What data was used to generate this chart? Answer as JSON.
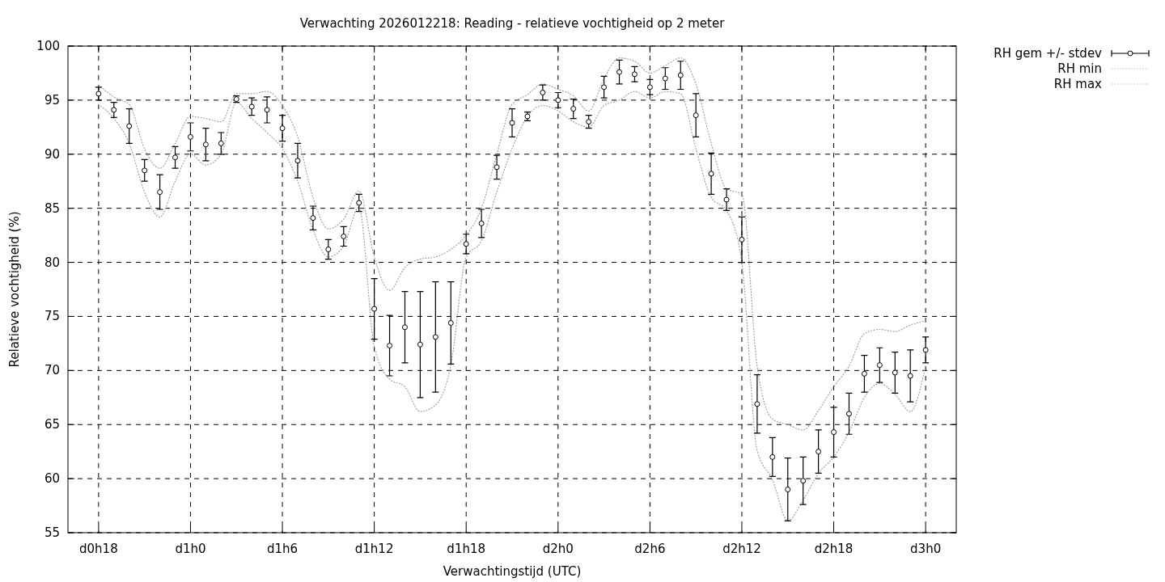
{
  "chart_data": {
    "type": "scatter",
    "title": "Verwachting 2026012218: Reading - relatieve vochtigheid op 2 meter",
    "xlabel": "Verwachtingstijd (UTC)",
    "ylabel": "Relatieve vochtigheid (%)",
    "categories": [
      "d0h18",
      null,
      null,
      null,
      null,
      null,
      "d1h0",
      null,
      null,
      null,
      null,
      null,
      "d1h6",
      null,
      null,
      null,
      null,
      null,
      "d1h12",
      null,
      null,
      null,
      null,
      null,
      "d1h18",
      null,
      null,
      null,
      null,
      null,
      "d2h0",
      null,
      null,
      null,
      null,
      null,
      "d2h6",
      null,
      null,
      null,
      null,
      null,
      "d2h12",
      null,
      null,
      null,
      null,
      null,
      "d2h18",
      null,
      null,
      null,
      null,
      null,
      "d3h0"
    ],
    "ylim": [
      55,
      100
    ],
    "yticks": [
      55,
      60,
      65,
      70,
      75,
      80,
      85,
      90,
      95,
      100
    ],
    "grid": true,
    "legend": "top right",
    "series": [
      {
        "name": "RH gem +/- stdev",
        "marker": "circle",
        "color": "#000000",
        "values": [
          95.6,
          94.1,
          92.6,
          88.5,
          86.5,
          89.7,
          91.6,
          90.9,
          91.0,
          95.1,
          94.4,
          94.1,
          92.4,
          89.4,
          84.1,
          81.2,
          82.4,
          85.5,
          75.7,
          72.3,
          74.0,
          72.4,
          73.1,
          74.4,
          81.7,
          83.6,
          88.8,
          92.9,
          93.5,
          95.7,
          95.0,
          94.2,
          93.0,
          96.2,
          97.6,
          97.4,
          96.2,
          97.0,
          97.3,
          93.6,
          88.2,
          85.8,
          82.1,
          66.9,
          62.0,
          59.0,
          59.8,
          62.5,
          64.3,
          66.0,
          69.7,
          70.5,
          69.8,
          69.5,
          71.9
        ],
        "errors": [
          0.6,
          0.7,
          1.6,
          1.0,
          1.6,
          1.0,
          1.3,
          1.5,
          1.0,
          0.3,
          0.8,
          1.2,
          1.2,
          1.6,
          1.1,
          0.9,
          0.9,
          0.8,
          2.8,
          2.8,
          3.3,
          4.9,
          5.1,
          3.8,
          0.9,
          1.3,
          1.1,
          1.3,
          0.4,
          0.7,
          0.7,
          0.9,
          0.6,
          1.0,
          1.1,
          0.7,
          0.7,
          1.0,
          1.3,
          2.0,
          1.9,
          1.0,
          2.1,
          2.7,
          1.8,
          2.9,
          2.2,
          2.0,
          2.3,
          1.9,
          1.7,
          1.6,
          1.9,
          2.4,
          1.2
        ]
      },
      {
        "name": "RH min",
        "type": "line",
        "line_style": "dotted",
        "color": "#a0a0a0",
        "values": [
          94.6,
          93.3,
          91.0,
          86.5,
          84.2,
          87.5,
          90.0,
          89.0,
          90.0,
          94.8,
          93.3,
          92.0,
          90.5,
          87.5,
          83.0,
          80.5,
          81.5,
          85.1,
          72.2,
          69.2,
          68.5,
          66.2,
          66.8,
          70.5,
          80.5,
          82.0,
          86.5,
          90.5,
          93.5,
          94.5,
          94.0,
          93.0,
          92.5,
          94.5,
          95.0,
          95.8,
          95.2,
          95.8,
          95.6,
          90.5,
          86.0,
          84.8,
          80.0,
          62.6,
          59.9,
          56.1,
          58.0,
          60.5,
          62.0,
          64.3,
          67.5,
          68.8,
          67.8,
          66.2,
          70.5
        ]
      },
      {
        "name": "RH max",
        "type": "line",
        "line_style": "dotted",
        "color": "#a0a0a0",
        "values": [
          96.4,
          95.3,
          94.6,
          90.5,
          88.7,
          91.0,
          93.5,
          93.3,
          93.0,
          95.6,
          95.6,
          95.8,
          94.5,
          91.6,
          86.0,
          83.1,
          84.0,
          86.6,
          80.5,
          77.4,
          79.5,
          80.3,
          80.5,
          81.2,
          82.5,
          85.0,
          90.0,
          94.6,
          95.5,
          96.5,
          96.0,
          95.4,
          94.0,
          97.0,
          98.9,
          98.6,
          97.5,
          98.2,
          98.9,
          96.5,
          91.0,
          86.8,
          86.3,
          70.4,
          65.5,
          65.0,
          64.5,
          66.3,
          68.5,
          70.4,
          73.4,
          73.8,
          73.6,
          74.2,
          74.6
        ]
      }
    ]
  }
}
